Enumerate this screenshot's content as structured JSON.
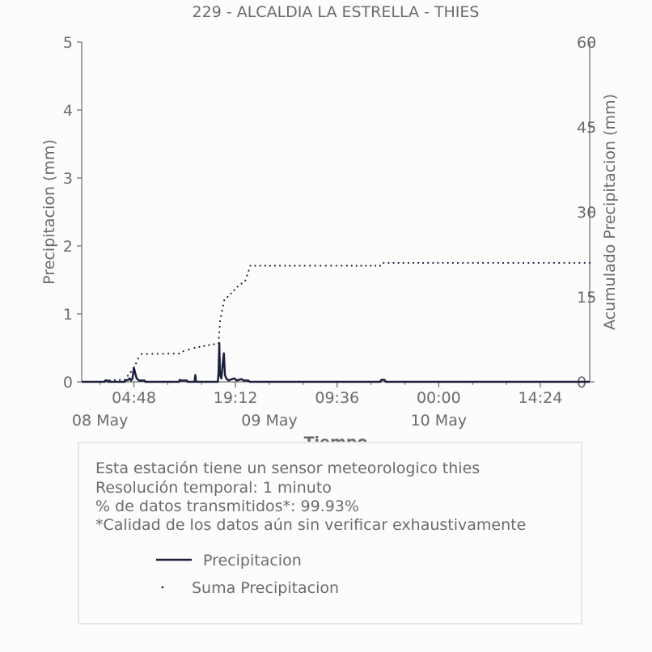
{
  "chart_data": {
    "type": "line",
    "title": "229 - ALCALDIA LA ESTRELLA - THIES",
    "xlabel": "Tiempo",
    "ylabel_left": "Precipitacion (mm)",
    "ylabel_right": "Acumulado Precipitacion (mm)",
    "ylim_left": [
      0,
      5
    ],
    "ylim_right": [
      0,
      60
    ],
    "yticks_left": [
      "0",
      "1",
      "2",
      "3",
      "4",
      "5"
    ],
    "yticks_right": [
      "0",
      "15",
      "30",
      "45",
      "60"
    ],
    "x_ticks": [
      {
        "hours": 4.8,
        "time": "04:48",
        "date": ""
      },
      {
        "hours": 19.2,
        "time": "19:12",
        "date": ""
      },
      {
        "hours": 33.6,
        "time": "09:36",
        "date": ""
      },
      {
        "hours": 48.0,
        "time": "00:00",
        "date": ""
      },
      {
        "hours": 62.4,
        "time": "14:24",
        "date": ""
      }
    ],
    "date_labels": [
      {
        "hours": 0,
        "label": "08 May"
      },
      {
        "hours": 24,
        "label": "09 May"
      },
      {
        "hours": 48,
        "label": "10 May"
      }
    ],
    "xlim_hours": [
      -2.6,
      69.4
    ],
    "grid": false,
    "series": [
      {
        "name": "Precipitacion",
        "style": "solid",
        "color": "#1c1f3d",
        "axis": "left",
        "points": [
          [
            -2.6,
            0
          ],
          [
            0.7,
            0
          ],
          [
            0.75,
            0.02
          ],
          [
            1.1,
            0.02
          ],
          [
            1.15,
            0
          ],
          [
            3.5,
            0
          ],
          [
            3.6,
            0.02
          ],
          [
            4.0,
            0.03
          ],
          [
            4.2,
            0.05
          ],
          [
            4.4,
            0.02
          ],
          [
            4.6,
            0.05
          ],
          [
            4.8,
            0.21
          ],
          [
            5.0,
            0.12
          ],
          [
            5.2,
            0.05
          ],
          [
            5.5,
            0.02
          ],
          [
            6.3,
            0.02
          ],
          [
            6.4,
            0
          ],
          [
            11.2,
            0
          ],
          [
            11.3,
            0.03
          ],
          [
            11.5,
            0.02
          ],
          [
            12.3,
            0.02
          ],
          [
            12.4,
            0
          ],
          [
            13.4,
            0
          ],
          [
            13.5,
            0.1
          ],
          [
            13.6,
            0
          ],
          [
            16.7,
            0
          ],
          [
            16.8,
            0.15
          ],
          [
            16.9,
            0.57
          ],
          [
            17.0,
            0.1
          ],
          [
            17.2,
            0.05
          ],
          [
            17.4,
            0.28
          ],
          [
            17.55,
            0.42
          ],
          [
            17.7,
            0.1
          ],
          [
            17.9,
            0.05
          ],
          [
            18.2,
            0.02
          ],
          [
            19.0,
            0.05
          ],
          [
            19.4,
            0.02
          ],
          [
            20.0,
            0.04
          ],
          [
            20.4,
            0.02
          ],
          [
            21.0,
            0.02
          ],
          [
            21.2,
            0
          ],
          [
            39.7,
            0
          ],
          [
            39.9,
            0.03
          ],
          [
            40.3,
            0.03
          ],
          [
            40.5,
            0
          ],
          [
            69.4,
            0
          ]
        ]
      },
      {
        "name": "Suma Precipitacion",
        "style": "dotted",
        "color": "#1c1f3d",
        "axis": "right",
        "points": [
          [
            0.7,
            0.2
          ],
          [
            3.5,
            0.4
          ],
          [
            4.8,
            2.4
          ],
          [
            5.4,
            4.1
          ],
          [
            5.9,
            4.9
          ],
          [
            11.2,
            5.0
          ],
          [
            11.8,
            5.4
          ],
          [
            13.4,
            6.0
          ],
          [
            16.8,
            6.8
          ],
          [
            17.0,
            10.7
          ],
          [
            17.6,
            14.4
          ],
          [
            19.5,
            16.8
          ],
          [
            20.6,
            17.9
          ],
          [
            21.3,
            20.5
          ],
          [
            29.0,
            20.5
          ],
          [
            35.0,
            20.5
          ],
          [
            39.7,
            20.5
          ],
          [
            40.2,
            21.0
          ],
          [
            50.0,
            21.0
          ],
          [
            60.0,
            21.0
          ],
          [
            69.4,
            21.0
          ]
        ]
      }
    ]
  },
  "info_box": {
    "lines": [
      "Esta estación tiene un sensor meteorologico thies",
      "Resolución temporal: 1 minuto",
      "% de datos transmitidos*: 99.93%",
      "*Calidad de los datos aún sin verificar exhaustivamente"
    ],
    "legend": [
      {
        "label": "Precipitacion",
        "marker": "line"
      },
      {
        "label": "Suma Precipitacion",
        "marker": "dot"
      }
    ]
  }
}
